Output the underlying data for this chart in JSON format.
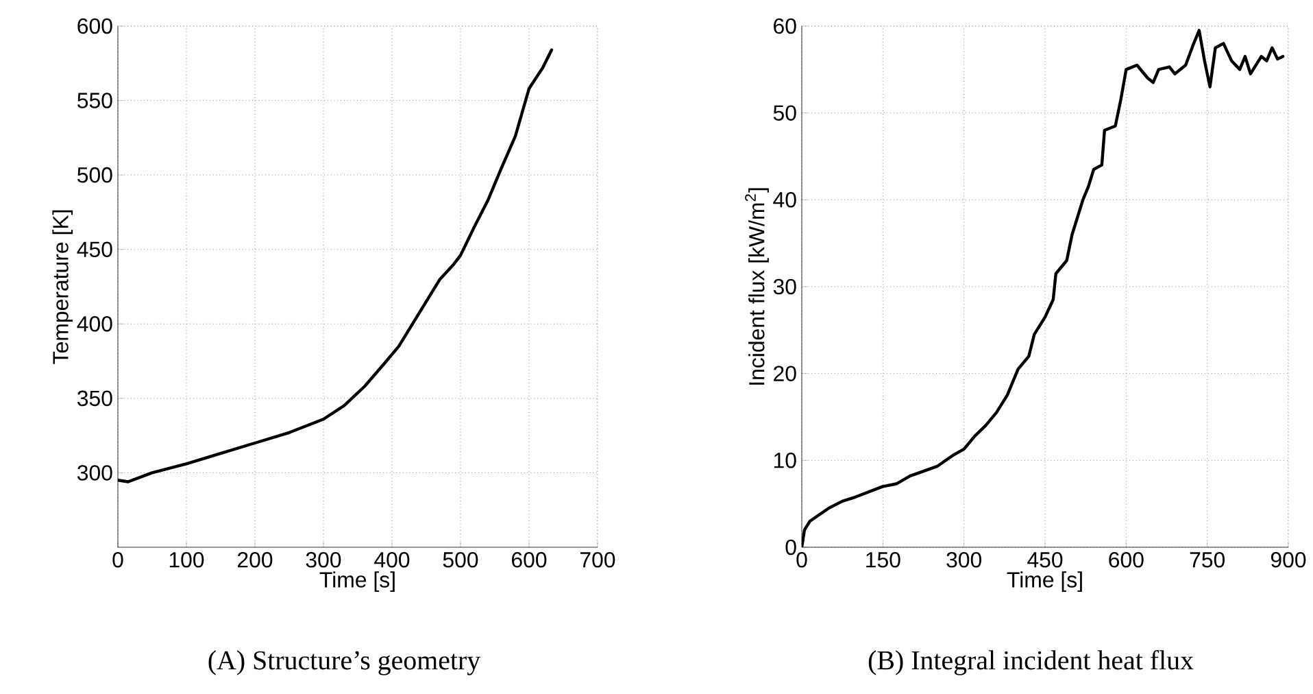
{
  "chart_data": [
    {
      "type": "line",
      "xlabel": "Time [s]",
      "ylabel": "Temperature [K]",
      "xlim": [
        0,
        700
      ],
      "ylim": [
        250,
        600
      ],
      "xticks": [
        0,
        100,
        200,
        300,
        400,
        500,
        600,
        700
      ],
      "yticks": [
        300,
        350,
        400,
        450,
        500,
        550,
        600
      ],
      "grid": true,
      "annotations": [
        "(A) Structure’s geometry"
      ],
      "series": [
        {
          "color": "#000000",
          "x": [
            0,
            15,
            50,
            100,
            150,
            200,
            250,
            300,
            330,
            360,
            390,
            410,
            430,
            450,
            470,
            490,
            500,
            520,
            540,
            560,
            580,
            600,
            620,
            633
          ],
          "values": [
            295,
            294,
            300,
            306,
            313,
            320,
            327,
            336,
            345,
            358,
            374,
            385,
            400,
            415,
            430,
            440,
            446,
            465,
            483,
            505,
            526,
            558,
            572,
            584
          ]
        }
      ]
    },
    {
      "type": "line",
      "xlabel": "Time [s]",
      "ylabel": "Incident flux [kW/m$^{2}$]",
      "xlim": [
        0,
        900
      ],
      "ylim": [
        0,
        60
      ],
      "xticks": [
        0,
        150,
        300,
        450,
        600,
        750,
        900
      ],
      "yticks": [
        0,
        10,
        20,
        30,
        40,
        50,
        60
      ],
      "grid": true,
      "annotations": [
        "(B) Integral incident heat flux"
      ],
      "series": [
        {
          "color": "#000000",
          "x": [
            0,
            5,
            15,
            50,
            75,
            100,
            150,
            175,
            200,
            250,
            280,
            300,
            320,
            340,
            360,
            380,
            400,
            420,
            430,
            450,
            465,
            470,
            490,
            500,
            520,
            530,
            540,
            555,
            560,
            580,
            590,
            600,
            620,
            640,
            650,
            660,
            680,
            690,
            710,
            725,
            735,
            745,
            755,
            765,
            780,
            795,
            810,
            820,
            830,
            850,
            860,
            870,
            880,
            890
          ],
          "values": [
            0,
            2,
            3,
            4.5,
            5.3,
            5.8,
            7,
            7.3,
            8.2,
            9.3,
            10.6,
            11.3,
            12.8,
            14,
            15.5,
            17.5,
            20.5,
            22,
            24.5,
            26.5,
            28.5,
            31.5,
            33,
            36,
            40,
            41.5,
            43.5,
            44,
            48,
            48.5,
            51.5,
            55,
            55.5,
            54,
            53.5,
            55,
            55.3,
            54.5,
            55.5,
            58,
            59.5,
            56,
            53,
            57.5,
            58,
            56,
            55,
            56.5,
            54.5,
            56.5,
            56,
            57.5,
            56.2,
            56.5
          ]
        }
      ]
    }
  ]
}
